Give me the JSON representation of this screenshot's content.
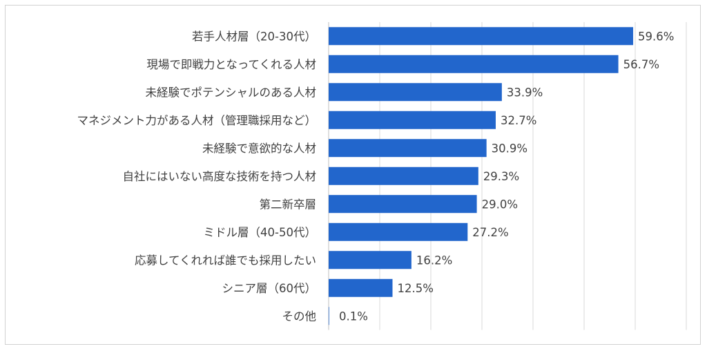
{
  "chart_data": {
    "type": "bar",
    "orientation": "horizontal",
    "title": "",
    "xlabel": "",
    "ylabel": "",
    "xlim": [
      0,
      70
    ],
    "grid": true,
    "bar_color": "#2266cc",
    "categories": [
      "若手人材層（20-30代）",
      "現場で即戦力となってくれる人材",
      "未経験でポテンシャルのある人材",
      "マネジメント力がある人材（管理職採用など）",
      "未経験で意欲的な人材",
      "自社にはいない高度な技術を持つ人材",
      "第二新卒層",
      "ミドル層（40-50代）",
      "応募してくれれば誰でも採用したい",
      "シニア層（60代）",
      "その他"
    ],
    "values": [
      59.6,
      56.7,
      33.9,
      32.7,
      30.9,
      29.3,
      29.0,
      27.2,
      16.2,
      12.5,
      0.1
    ],
    "value_labels": [
      "59.6%",
      "56.7%",
      "33.9%",
      "32.7%",
      "30.9%",
      "29.3%",
      "29.0%",
      "27.2%",
      "16.2%",
      "12.5%",
      "0.1%"
    ]
  }
}
